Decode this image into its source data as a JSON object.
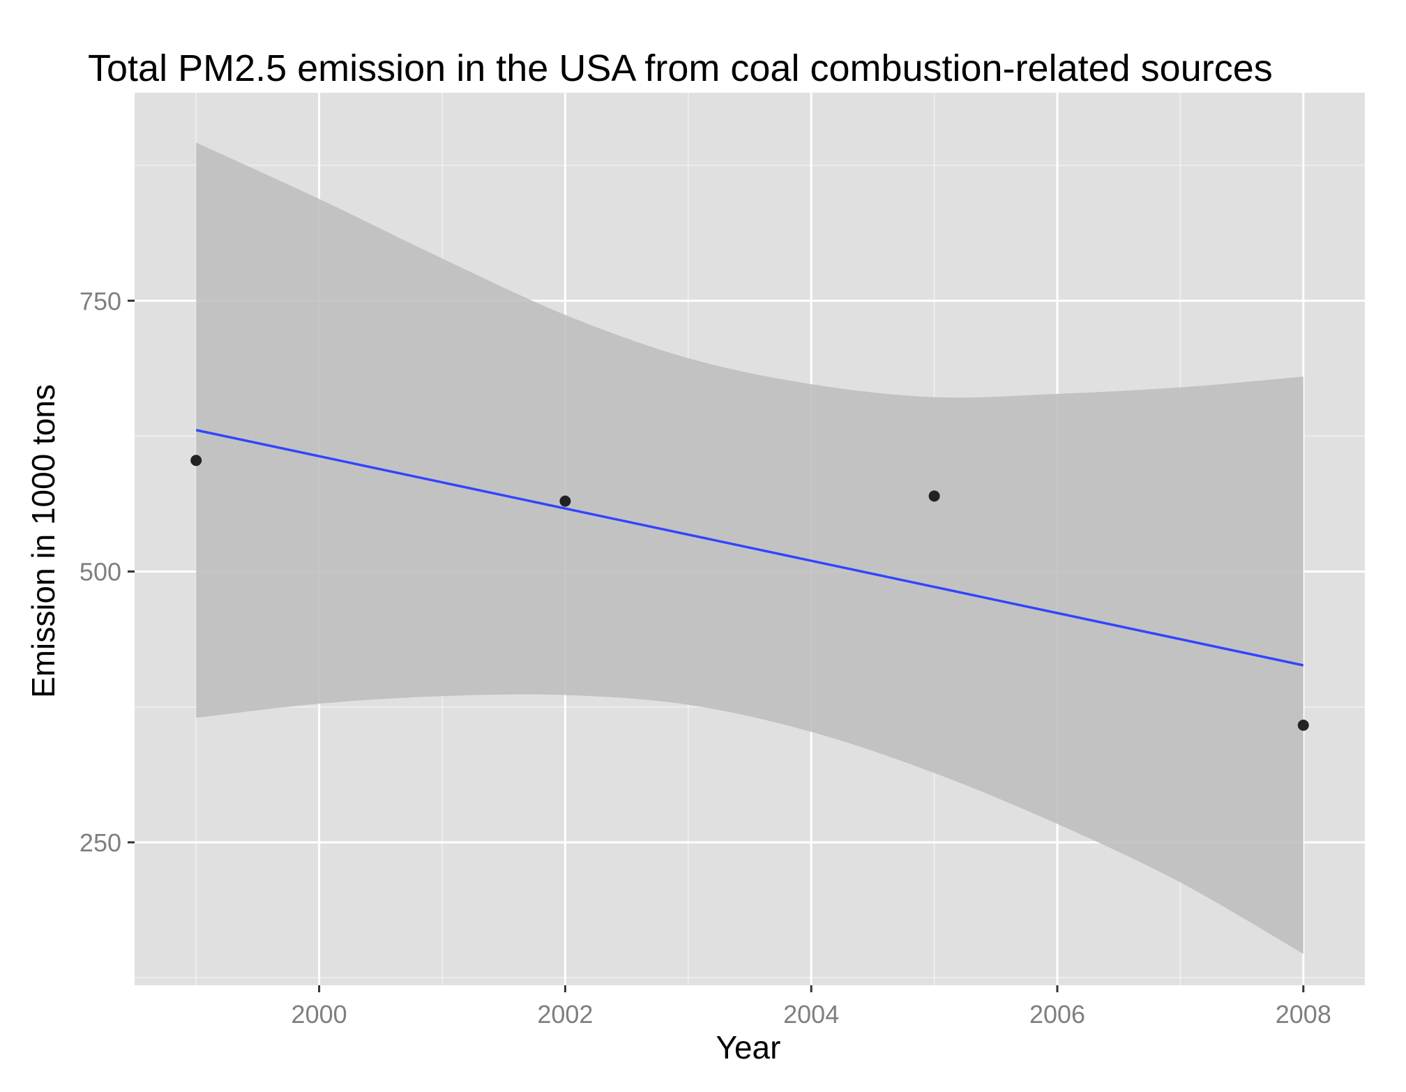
{
  "chart_data": {
    "type": "scatter",
    "title": "Total PM2.5 emission in the USA from coal combustion-related sources",
    "xlabel": "Year",
    "ylabel": "Emission in 1000 tons",
    "xlim": [
      1998.5,
      2008.5
    ],
    "ylim": [
      118,
      942
    ],
    "x_ticks": [
      2000,
      2002,
      2004,
      2006,
      2008
    ],
    "x_tick_labels": [
      "2000",
      "2002",
      "2004",
      "2006",
      "2008"
    ],
    "y_ticks": [
      250,
      500,
      750
    ],
    "y_tick_labels": [
      "250",
      "500",
      "750"
    ],
    "grid": true,
    "points": {
      "x": [
        1999,
        2002,
        2005,
        2008
      ],
      "y": [
        602.6,
        565.0,
        569.7,
        358.1
      ]
    },
    "trend_line": {
      "method": "linear fit",
      "x": [
        1999,
        2008
      ],
      "y": [
        630.6,
        413.4
      ]
    },
    "confidence_band": {
      "x": [
        1999,
        2000,
        2001,
        2002,
        2003,
        2004,
        2005,
        2006,
        2007,
        2008
      ],
      "upper": [
        896,
        844,
        789,
        737,
        697,
        673,
        661,
        664,
        670,
        680
      ],
      "lower": [
        365,
        378,
        385,
        386,
        377,
        352,
        314,
        267,
        213,
        147
      ]
    },
    "colors": {
      "panel_background": "#e0e0e0",
      "grid": "#ffffff",
      "points": "#222222",
      "trend_line": "#3344ff",
      "confidence_band": "#bcbcbc"
    }
  }
}
